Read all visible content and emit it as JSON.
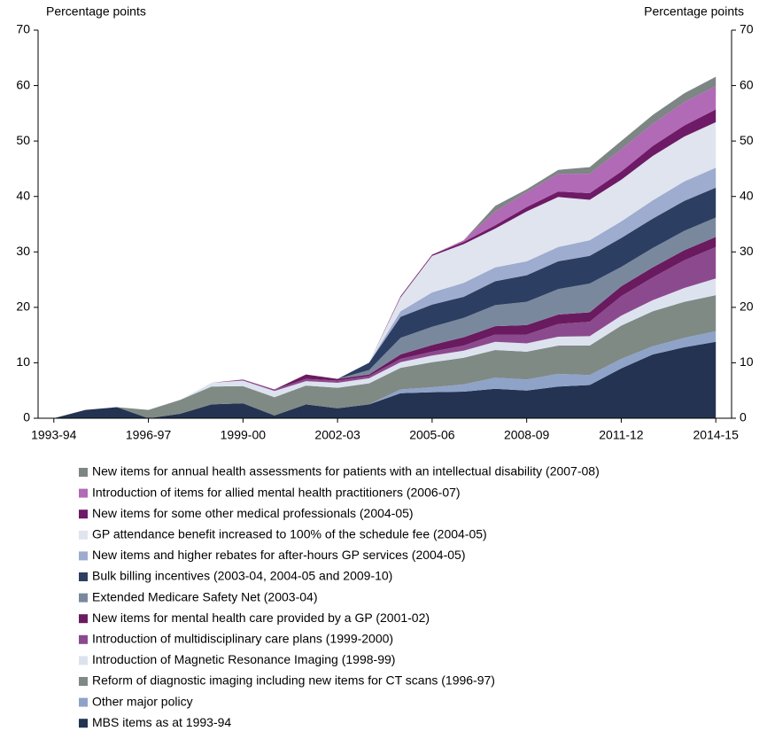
{
  "chart_data": {
    "type": "stacked_area",
    "y_label": "Percentage points",
    "y2_label": "Percentage points",
    "categories": [
      "1993-94",
      null,
      null,
      "1996-97",
      null,
      null,
      "1999-00",
      null,
      null,
      "2002-03",
      null,
      null,
      "2005-06",
      null,
      null,
      "2008-09",
      null,
      null,
      "2011-12",
      null,
      null,
      "2014-15"
    ],
    "ylim": [
      0,
      70
    ],
    "yticks": [
      0,
      10,
      20,
      30,
      40,
      50,
      60,
      70
    ],
    "y2lim": [
      0,
      70
    ],
    "y2ticks": [
      0,
      10,
      20,
      30,
      40,
      50,
      60,
      70
    ],
    "series": [
      {
        "name": "MBS items as at 1993-94",
        "color": "#243352",
        "values": [
          0,
          1.5,
          2,
          0,
          0.8,
          2.5,
          2.7,
          0.5,
          2.5,
          1.8,
          2.5,
          4.5,
          4.7,
          4.8,
          5.3,
          5,
          5.7,
          6,
          9,
          11.5,
          12.8,
          13.8
        ]
      },
      {
        "name": "Other major policy",
        "color": "#8fa3c9",
        "values": [
          0,
          0,
          0,
          0,
          0,
          0,
          0,
          0,
          0,
          0,
          0,
          0.7,
          0.9,
          1.3,
          2,
          2,
          2.3,
          1.8,
          1.7,
          1.5,
          1.7,
          1.9
        ]
      },
      {
        "name": "Reform of diagnostic imaging including new items for CT scans (1996-97)",
        "color": "#7f8a85",
        "values": [
          0,
          0,
          0,
          1.5,
          2.5,
          3.2,
          3.1,
          3.3,
          3.4,
          3.7,
          3.8,
          3.9,
          4.5,
          4.8,
          5,
          5,
          5.1,
          5.3,
          6,
          6.3,
          6.5,
          6.5
        ]
      },
      {
        "name": "Introduction of Magnetic Resonance Imaging (1998-99)",
        "color": "#dde3ee",
        "values": [
          0,
          0,
          0,
          0,
          0,
          0.7,
          1,
          1.1,
          0.8,
          0.9,
          0.9,
          1,
          1.2,
          1.3,
          1.5,
          1.5,
          1.6,
          1.7,
          1.8,
          2,
          2.5,
          3
        ]
      },
      {
        "name": "Introduction of multidisciplinary care plans (1999-2000)",
        "color": "#8c4a8e",
        "values": [
          0,
          0,
          0,
          0,
          0,
          0,
          0.2,
          0.3,
          0.4,
          0.4,
          0.4,
          0.6,
          0.7,
          0.9,
          1.3,
          1.6,
          2.3,
          2.6,
          3.5,
          4.1,
          5,
          5.7
        ]
      },
      {
        "name": "New items for mental health care provided by a GP (2001-02)",
        "color": "#6a1a5f",
        "values": [
          0,
          0,
          0,
          0,
          0,
          0,
          0,
          0,
          0.8,
          0.3,
          0.3,
          0.8,
          1.2,
          1.5,
          1.5,
          1.7,
          1.7,
          1.7,
          1.8,
          1.8,
          1.8,
          1.8
        ]
      },
      {
        "name": "Extended Medicare Safety Net (2003-04)",
        "color": "#7a889e",
        "values": [
          0,
          0,
          0,
          0,
          0,
          0,
          0,
          0,
          0,
          0,
          0.8,
          3,
          3.3,
          3.5,
          3.8,
          4.2,
          4.6,
          5.2,
          3.5,
          3.5,
          3.5,
          3.5
        ]
      },
      {
        "name": "Bulk billing incentives (2003-04, 2004-05 and 2009-10)",
        "color": "#2c3e62",
        "values": [
          0,
          0,
          0,
          0,
          0,
          0,
          0,
          0,
          0,
          0,
          1.3,
          3.8,
          4,
          3.8,
          4.3,
          4.8,
          5,
          5,
          5.2,
          5.3,
          5.4,
          5.4
        ]
      },
      {
        "name": "New items and higher rebates for after-hours GP services (2004-05)",
        "color": "#9daccf",
        "values": [
          0,
          0,
          0,
          0,
          0,
          0,
          0,
          0,
          0,
          0,
          0,
          1,
          2.2,
          2.5,
          2.5,
          2.5,
          2.6,
          2.8,
          3,
          3.3,
          3.5,
          3.6
        ]
      },
      {
        "name": "GP attendance benefit increased to 100% of the schedule fee (2004-05)",
        "color": "#dfe4ee",
        "values": [
          0,
          0,
          0,
          0,
          0,
          0,
          0,
          0,
          0,
          0,
          0,
          2.5,
          6.6,
          7,
          7,
          9,
          9,
          7.3,
          7.5,
          8,
          8.1,
          8.2
        ]
      },
      {
        "name": "New items for some other medical professionals (2004-05)",
        "color": "#6e1a66",
        "values": [
          0,
          0,
          0,
          0,
          0,
          0,
          0,
          0,
          0,
          0,
          0,
          0.2,
          0.2,
          0.4,
          0.6,
          0.8,
          1,
          1.2,
          1.5,
          1.8,
          2,
          2.3
        ]
      },
      {
        "name": "Introduction of items for allied mental health practitioners (2006-07)",
        "color": "#b16ab5",
        "values": [
          0,
          0,
          0,
          0,
          0,
          0,
          0,
          0,
          0,
          0,
          0,
          0,
          0,
          0.3,
          2.5,
          2.7,
          3.2,
          3.5,
          4,
          4,
          4.2,
          4.2
        ]
      },
      {
        "name": "New items for annual health assessments for patients with an intellectual disability (2007-08)",
        "color": "#7d8585",
        "values": [
          0,
          0,
          0,
          0,
          0,
          0,
          0,
          0,
          0,
          0,
          0,
          0,
          0,
          0,
          1,
          0.5,
          0.7,
          1.2,
          1.5,
          1.6,
          1.6,
          1.7
        ]
      }
    ]
  }
}
